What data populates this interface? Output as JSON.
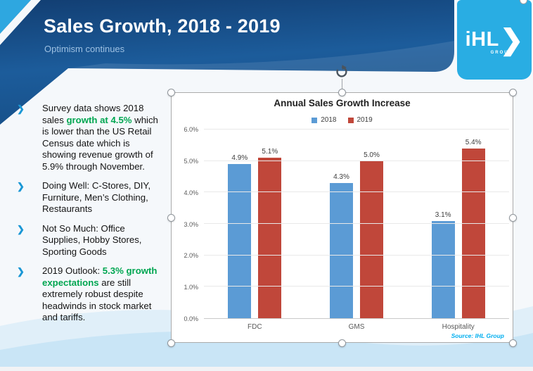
{
  "header": {
    "title": "Sales Growth, 2018 - 2019",
    "subtitle": "Optimism continues"
  },
  "logo": {
    "text": "iHL",
    "chevron": "❯",
    "sub": "GROUP",
    "bg_color": "#29ade3"
  },
  "icons": {
    "bullet_chevron": "❯",
    "rotate_handle": "rotate-arrow",
    "green_accent": "#00a651",
    "chevron_blue": "#1a97d5"
  },
  "bullets": [
    {
      "segments": [
        {
          "t": "Survey data shows 2018 sales ",
          "s": "n"
        },
        {
          "t": "growth at 4.5%",
          "s": "g"
        },
        {
          "t": " which is lower than the US Retail Census date which is showing revenue growth of 5.9% through November.",
          "s": "n"
        }
      ]
    },
    {
      "segments": [
        {
          "t": "Doing Well: C-Stores, DIY, Furniture, Men’s Clothing, Restaurants",
          "s": "n"
        }
      ]
    },
    {
      "segments": [
        {
          "t": "Not So Much: Office Supplies, Hobby Stores, Sporting Goods",
          "s": "n"
        }
      ]
    },
    {
      "segments": [
        {
          "t": "2019 Outlook: ",
          "s": "n"
        },
        {
          "t": "5.3% growth expectations",
          "s": "g"
        },
        {
          "t": " are still extremely robust despite headwinds in stock market and tariffs.",
          "s": "n"
        }
      ]
    }
  ],
  "chart_data": {
    "type": "bar",
    "title": "Annual Sales Growth Increase",
    "categories": [
      "FDC",
      "GMS",
      "Hospitality"
    ],
    "series": [
      {
        "name": "2018",
        "color": "#5b9bd5",
        "values": [
          4.9,
          4.3,
          3.1
        ],
        "labels": [
          "4.9%",
          "4.3%",
          "3.1%"
        ]
      },
      {
        "name": "2019",
        "color": "#c0473a",
        "values": [
          5.1,
          5.0,
          5.4
        ],
        "labels": [
          "5.1%",
          "5.0%",
          "5.4%"
        ]
      }
    ],
    "ylim": [
      0,
      6
    ],
    "yticks": [
      "0.0%",
      "1.0%",
      "2.0%",
      "3.0%",
      "4.0%",
      "5.0%",
      "6.0%"
    ],
    "grid": true,
    "legend_position": "top",
    "source": "Source: IHL Group"
  }
}
